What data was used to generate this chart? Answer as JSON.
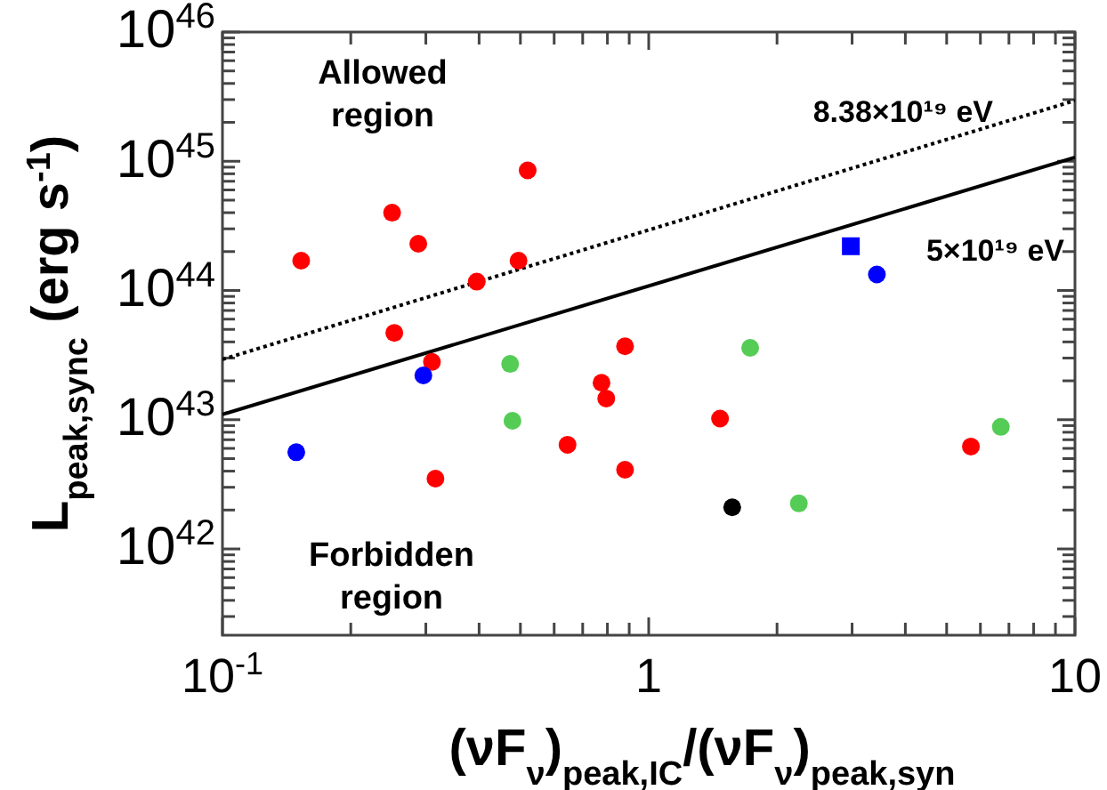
{
  "chart_data": {
    "type": "scatter",
    "xlabel": "(νF$_{ν}$)$_{peak,IC}$/(νF$_{ν}$)$_{peak,syn}$",
    "ylabel": "L$_{peak,sync}$ (erg s$^{-1}$)",
    "log": "xy",
    "grid": false,
    "xlim": [
      0.1,
      10
    ],
    "ylim": [
      2.15e+41,
      1e+46
    ],
    "xticks": [
      {
        "value": 0.1,
        "label": "10$^{-1}$"
      },
      {
        "value": 0.2,
        "label": null
      },
      {
        "value": 0.3,
        "label": null
      },
      {
        "value": 0.4,
        "label": null
      },
      {
        "value": 0.5,
        "label": null
      },
      {
        "value": 0.6,
        "label": null
      },
      {
        "value": 0.7,
        "label": null
      },
      {
        "value": 0.8,
        "label": null
      },
      {
        "value": 0.9,
        "label": null
      },
      {
        "value": 1,
        "label": "1"
      },
      {
        "value": 2,
        "label": null
      },
      {
        "value": 3,
        "label": null
      },
      {
        "value": 4,
        "label": null
      },
      {
        "value": 5,
        "label": null
      },
      {
        "value": 6,
        "label": null
      },
      {
        "value": 7,
        "label": null
      },
      {
        "value": 8,
        "label": null
      },
      {
        "value": 9,
        "label": null
      },
      {
        "value": 10,
        "label": "10"
      }
    ],
    "yticks": [
      {
        "value": 3e+41,
        "label": null
      },
      {
        "value": 4e+41,
        "label": null
      },
      {
        "value": 5e+41,
        "label": null
      },
      {
        "value": 6e+41,
        "label": null
      },
      {
        "value": 7e+41,
        "label": null
      },
      {
        "value": 8e+41,
        "label": null
      },
      {
        "value": 9e+41,
        "label": null
      },
      {
        "value": 1e+42,
        "label": "10$^{42}$"
      },
      {
        "value": 2e+42,
        "label": null
      },
      {
        "value": 3e+42,
        "label": null
      },
      {
        "value": 4e+42,
        "label": null
      },
      {
        "value": 5e+42,
        "label": null
      },
      {
        "value": 6e+42,
        "label": null
      },
      {
        "value": 7e+42,
        "label": null
      },
      {
        "value": 8e+42,
        "label": null
      },
      {
        "value": 9e+42,
        "label": null
      },
      {
        "value": 1e+43,
        "label": "10$^{43}$"
      },
      {
        "value": 2e+43,
        "label": null
      },
      {
        "value": 3e+43,
        "label": null
      },
      {
        "value": 4e+43,
        "label": null
      },
      {
        "value": 5e+43,
        "label": null
      },
      {
        "value": 6e+43,
        "label": null
      },
      {
        "value": 7e+43,
        "label": null
      },
      {
        "value": 8e+43,
        "label": null
      },
      {
        "value": 9e+43,
        "label": null
      },
      {
        "value": 1e+44,
        "label": "10$^{44}$"
      },
      {
        "value": 2e+44,
        "label": null
      },
      {
        "value": 3e+44,
        "label": null
      },
      {
        "value": 4e+44,
        "label": null
      },
      {
        "value": 5e+44,
        "label": null
      },
      {
        "value": 6e+44,
        "label": null
      },
      {
        "value": 7e+44,
        "label": null
      },
      {
        "value": 8e+44,
        "label": null
      },
      {
        "value": 9e+44,
        "label": null
      },
      {
        "value": 1e+45,
        "label": "10$^{45}$"
      },
      {
        "value": 2e+45,
        "label": null
      },
      {
        "value": 3e+45,
        "label": null
      },
      {
        "value": 4e+45,
        "label": null
      },
      {
        "value": 5e+45,
        "label": null
      },
      {
        "value": 6e+45,
        "label": null
      },
      {
        "value": 7e+45,
        "label": null
      },
      {
        "value": 8e+45,
        "label": null
      },
      {
        "value": 9e+45,
        "label": null
      },
      {
        "value": 1e+46,
        "label": "10$^{46}$"
      }
    ],
    "annotations": [
      "Allowed\nregion",
      "Forbidden\nregion"
    ],
    "series": [
      {
        "type": "line",
        "name": "8.38×10¹⁹ eV",
        "color": "#000000",
        "line_style": "dotted",
        "x": [
          0.1,
          10
        ],
        "values": [
          2.93e+43,
          2.95e+45
        ]
      },
      {
        "type": "line",
        "name": "5×10¹⁹ eV",
        "color": "#000000",
        "line_style": "solid",
        "x": [
          0.1,
          10
        ],
        "values": [
          1.1e+43,
          1.07e+45
        ]
      },
      {
        "color": "#ff0000",
        "marker": "circle",
        "x": [
          0.153,
          0.25,
          0.288,
          0.52,
          0.395,
          0.495,
          0.253,
          0.31,
          0.88,
          0.775,
          0.795,
          1.47,
          0.645,
          0.88,
          0.316,
          5.7
        ],
        "values": [
          1.7e+44,
          4e+44,
          2.3e+44,
          8.5e+44,
          1.17e+44,
          1.7e+44,
          4.7e+43,
          2.8e+43,
          3.7e+43,
          1.93e+43,
          1.46e+43,
          1.02e+43,
          6.4e+42,
          4.1e+42,
          3.5e+42,
          6.2e+42
        ]
      },
      {
        "color": "#0000ff",
        "marker": "circle",
        "x": [
          0.149,
          0.296,
          3.43
        ],
        "values": [
          5.6e+42,
          2.2e+43,
          1.33e+44
        ]
      },
      {
        "color": "#0000ff",
        "marker": "square",
        "x": [
          2.98
        ],
        "values": [
          2.2e+44
        ]
      },
      {
        "color": "#55cc55",
        "marker": "circle",
        "x": [
          0.473,
          0.479,
          1.73,
          2.25,
          6.7
        ],
        "values": [
          2.7e+43,
          9.8e+42,
          3.6e+43,
          2.25e+42,
          8.8e+42
        ]
      },
      {
        "color": "#000000",
        "marker": "circle",
        "x": [
          1.57
        ],
        "values": [
          2.1e+42
        ]
      }
    ]
  }
}
